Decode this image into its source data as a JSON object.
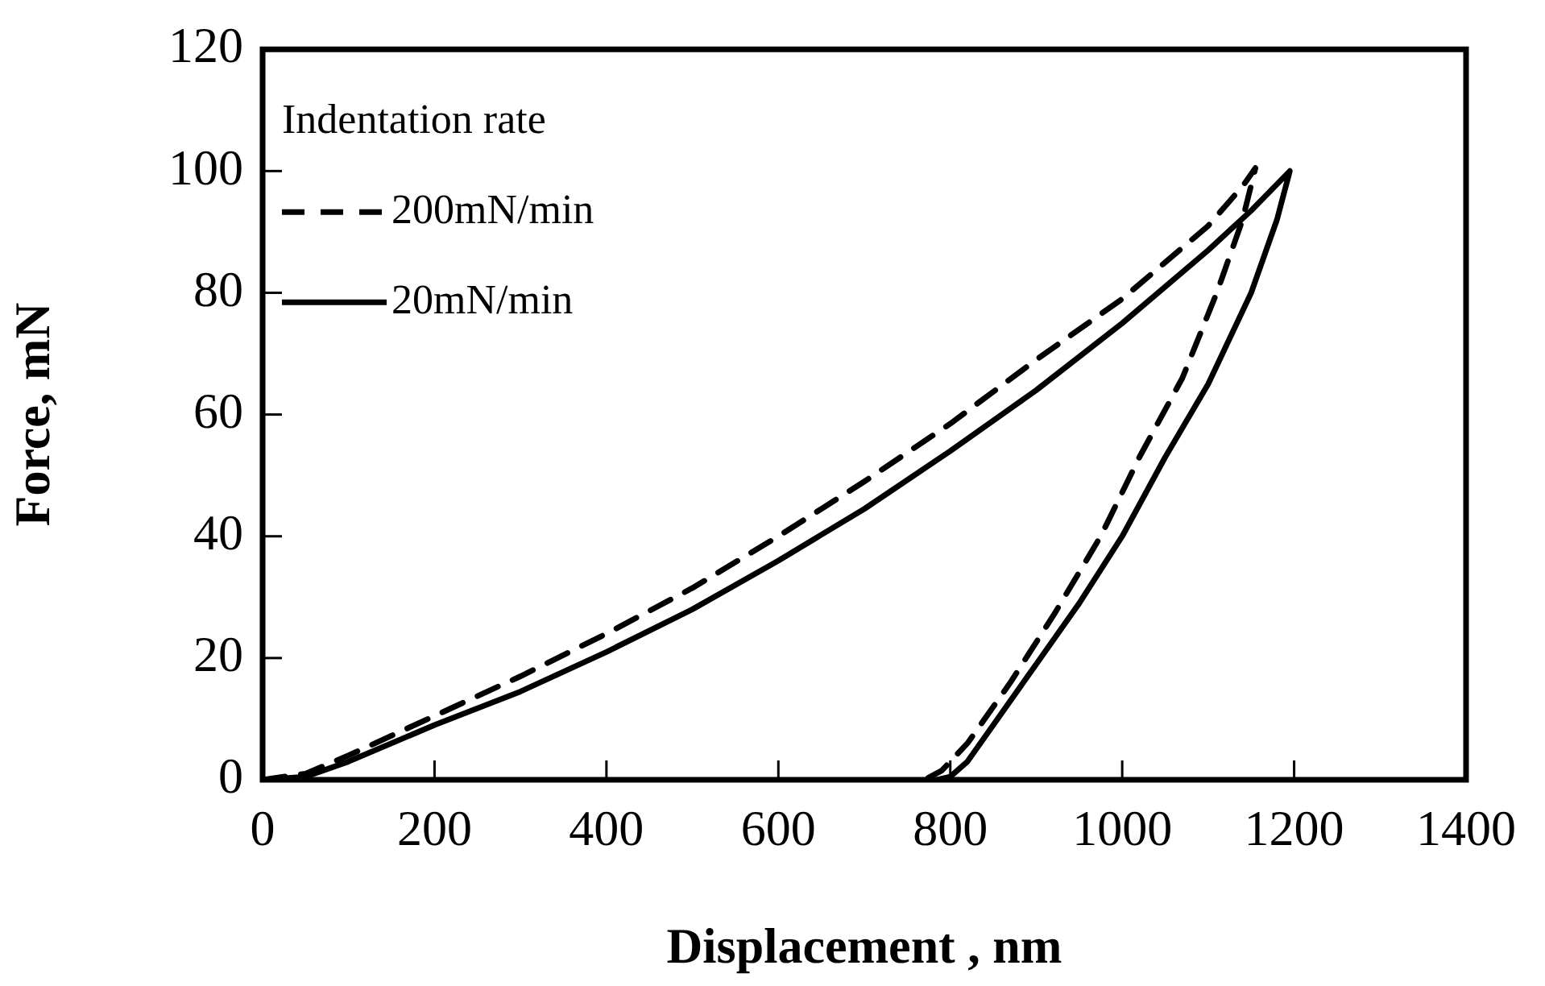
{
  "chart_data": {
    "type": "line",
    "xlabel": "Displacement , nm",
    "ylabel": "Force, mN",
    "legend_title": "Indentation rate",
    "legend": "top left",
    "grid": false,
    "marker": "none",
    "xlim": [
      0,
      1400
    ],
    "xticks": [
      0,
      200,
      400,
      600,
      800,
      1000,
      1200,
      1400
    ],
    "ylim": [
      0,
      120
    ],
    "yticks": [
      0,
      20,
      40,
      60,
      80,
      100,
      120
    ],
    "series": [
      {
        "name": "200mN/min",
        "color": "#000000",
        "line_style": "dashed",
        "x": [
          0,
          50,
          100,
          200,
          300,
          400,
          500,
          600,
          700,
          800,
          900,
          1000,
          1100,
          1140,
          1155,
          1140,
          1110,
          1070,
          1020,
          975,
          920,
          870,
          820,
          790,
          770
        ],
        "values": [
          0,
          1,
          4,
          10.5,
          17,
          24,
          31.5,
          40,
          49,
          58.5,
          69,
          79,
          91,
          97.5,
          100.5,
          92,
          80,
          66,
          53,
          40,
          27,
          16,
          6,
          1.5,
          0
        ]
      },
      {
        "name": "20mN/min",
        "color": "#000000",
        "line_style": "solid",
        "x": [
          0,
          50,
          100,
          200,
          300,
          400,
          500,
          600,
          700,
          800,
          900,
          1000,
          1100,
          1150,
          1195,
          1180,
          1150,
          1100,
          1050,
          1000,
          950,
          900,
          850,
          820,
          800,
          785
        ],
        "values": [
          0,
          0.5,
          3,
          9,
          14.5,
          21,
          28,
          36,
          44.5,
          54,
          64,
          75,
          87,
          93.5,
          100,
          92,
          80,
          65,
          53,
          40,
          29,
          19,
          9,
          3,
          0.5,
          0
        ]
      }
    ]
  }
}
